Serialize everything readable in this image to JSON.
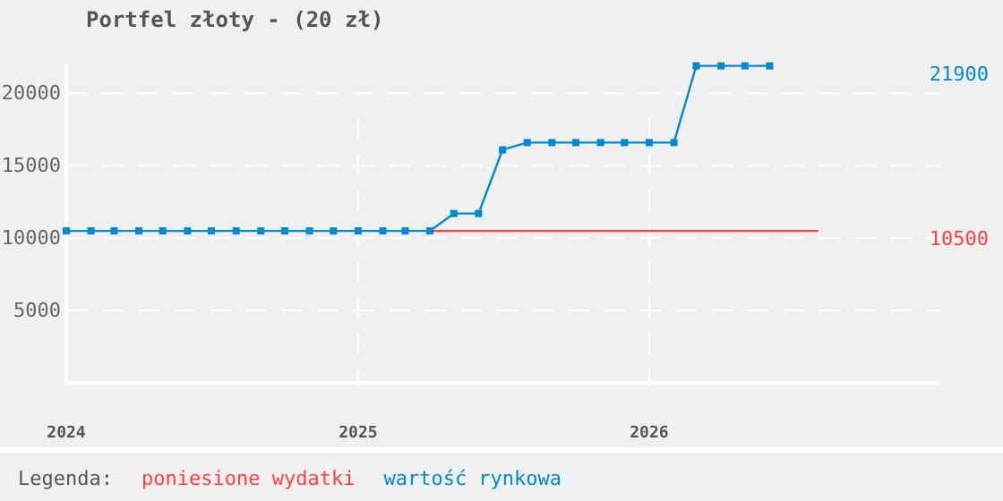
{
  "chart_data": {
    "type": "line",
    "title": "Portfel złoty - (20 zł)",
    "legend_title": "Legenda:",
    "legend": "bottom",
    "grid": true,
    "xlim": [
      "2024-01",
      "2027-01"
    ],
    "xticks": [
      {
        "value": "2024-01",
        "label": "2024"
      },
      {
        "value": "2025-01",
        "label": "2025"
      },
      {
        "value": "2026-01",
        "label": "2026"
      }
    ],
    "ylim": [
      0,
      22000
    ],
    "yticks": [
      5000,
      10000,
      15000,
      20000
    ],
    "series": [
      {
        "name": "poniesione wydatki",
        "color": "#ff4040",
        "marker": "none",
        "x": [
          "2025-04",
          "2026-08"
        ],
        "values": [
          10500,
          10500
        ]
      },
      {
        "name": "wartość rynkowa",
        "color": "#0088d0",
        "marker": "square",
        "x": [
          "2024-01",
          "2024-02",
          "2024-03",
          "2024-04",
          "2024-05",
          "2024-06",
          "2024-07",
          "2024-08",
          "2024-09",
          "2024-10",
          "2024-11",
          "2024-12",
          "2025-01",
          "2025-02",
          "2025-03",
          "2025-04",
          "2025-05",
          "2025-06",
          "2025-07",
          "2025-08",
          "2025-09",
          "2025-10",
          "2025-11",
          "2025-12",
          "2026-01",
          "2026-02",
          "2026-03",
          "2026-04",
          "2026-05",
          "2026-06"
        ],
        "values": [
          10500,
          10500,
          10500,
          10500,
          10500,
          10500,
          10500,
          10500,
          10500,
          10500,
          10500,
          10500,
          10500,
          10500,
          10500,
          10500,
          11700,
          11700,
          16100,
          16600,
          16600,
          16600,
          16600,
          16600,
          16600,
          16600,
          21900,
          21900,
          21900,
          21900
        ]
      }
    ],
    "annotations": [
      "21900",
      "10500"
    ]
  }
}
